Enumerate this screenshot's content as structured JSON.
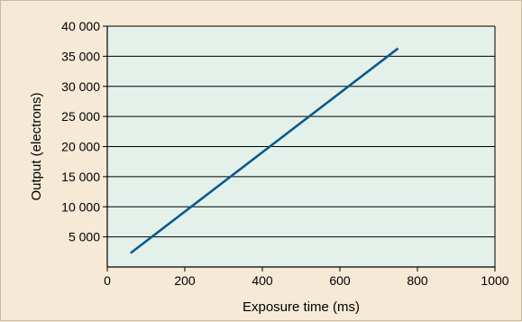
{
  "colors": {
    "page_background": "#f6ead7",
    "plot_background": "#e3f1ea",
    "line": "#0b5a8c",
    "grid": "#000000"
  },
  "chart_data": {
    "type": "line",
    "xlabel": "Exposure time (ms)",
    "ylabel": "Output (electrons)",
    "xlim": [
      0,
      1000
    ],
    "ylim": [
      0,
      40000
    ],
    "xticks": [
      0,
      200,
      400,
      600,
      800,
      1000
    ],
    "xtick_labels": [
      "0",
      "200",
      "400",
      "600",
      "800",
      "1000"
    ],
    "yticks": [
      5000,
      10000,
      15000,
      20000,
      25000,
      30000,
      35000,
      40000
    ],
    "ytick_labels": [
      "5 000",
      "10 000",
      "15 000",
      "20 000",
      "25 000",
      "30 000",
      "35 000",
      "40 000"
    ],
    "grid": "horizontal",
    "series": [
      {
        "x": [
          60,
          750
        ],
        "y": [
          2300,
          36300
        ]
      }
    ]
  }
}
